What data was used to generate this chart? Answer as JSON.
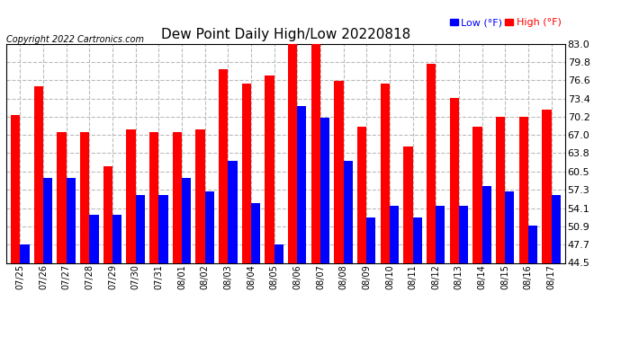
{
  "title": "Dew Point Daily High/Low 20220818",
  "copyright": "Copyright 2022 Cartronics.com",
  "legend_low": "Low (°F)",
  "legend_high": "High (°F)",
  "low_color": "blue",
  "high_color": "red",
  "background_color": "#ffffff",
  "plot_bg_color": "#ffffff",
  "ylim": [
    44.5,
    83.0
  ],
  "yticks": [
    44.5,
    47.7,
    50.9,
    54.1,
    57.3,
    60.5,
    63.8,
    67.0,
    70.2,
    73.4,
    76.6,
    79.8,
    83.0
  ],
  "grid_color": "#bbbbbb",
  "dates": [
    "07/25",
    "07/26",
    "07/27",
    "07/28",
    "07/29",
    "07/30",
    "07/31",
    "08/01",
    "08/02",
    "08/03",
    "08/04",
    "08/05",
    "08/06",
    "08/07",
    "08/08",
    "08/09",
    "08/10",
    "08/11",
    "08/12",
    "08/13",
    "08/14",
    "08/15",
    "08/16",
    "08/17"
  ],
  "high": [
    70.5,
    75.5,
    67.5,
    67.5,
    61.5,
    68.0,
    67.5,
    67.5,
    68.0,
    78.5,
    76.0,
    77.5,
    83.0,
    83.0,
    76.5,
    68.5,
    76.0,
    65.0,
    79.5,
    73.5,
    68.5,
    70.2,
    70.2,
    71.5
  ],
  "low": [
    47.7,
    59.5,
    59.5,
    53.0,
    53.0,
    56.5,
    56.5,
    59.5,
    57.0,
    62.5,
    55.0,
    47.7,
    72.0,
    70.0,
    62.5,
    52.5,
    54.5,
    52.5,
    54.5,
    54.5,
    58.0,
    57.0,
    51.0,
    56.5
  ]
}
